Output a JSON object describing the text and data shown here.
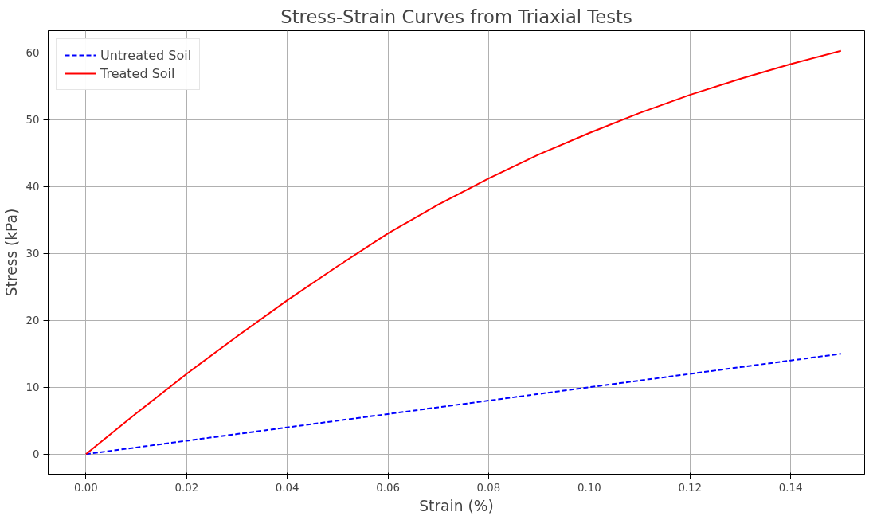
{
  "chart_data": {
    "type": "line",
    "title": "Stress-Strain Curves from Triaxial Tests",
    "xlabel": "Strain (%)",
    "ylabel": "Stress (kPa)",
    "x": [
      0,
      0.01,
      0.02,
      0.03,
      0.04,
      0.05,
      0.06,
      0.07,
      0.08,
      0.09,
      0.1,
      0.11,
      0.12,
      0.13,
      0.14,
      0.15
    ],
    "series": [
      {
        "name": "Untreated Soil",
        "color": "#0000ff",
        "line_style": "dashed",
        "values": [
          0,
          1,
          2,
          3,
          4,
          5,
          6,
          7,
          8,
          9,
          10,
          11,
          12,
          13,
          14,
          15
        ]
      },
      {
        "name": "Treated Soil",
        "color": "#ff0000",
        "line_style": "solid",
        "values": [
          0,
          6.1,
          12,
          17.6,
          23,
          28.1,
          33,
          37.3,
          41.2,
          44.8,
          48,
          51,
          53.7,
          56.1,
          58.3,
          60.3
        ]
      }
    ],
    "xlim": [
      -0.0075,
      0.1547
    ],
    "ylim": [
      -3.0,
      63.3
    ],
    "xticks": [
      {
        "value": 0,
        "label": "0.00"
      },
      {
        "value": 0.02,
        "label": "0.02"
      },
      {
        "value": 0.04,
        "label": "0.04"
      },
      {
        "value": 0.06,
        "label": "0.06"
      },
      {
        "value": 0.08,
        "label": "0.08"
      },
      {
        "value": 0.1,
        "label": "0.10"
      },
      {
        "value": 0.12,
        "label": "0.12"
      },
      {
        "value": 0.14,
        "label": "0.14"
      }
    ],
    "yticks": [
      0,
      10,
      20,
      30,
      40,
      50,
      60
    ],
    "grid": true,
    "legend": "top left",
    "marker": "none"
  }
}
